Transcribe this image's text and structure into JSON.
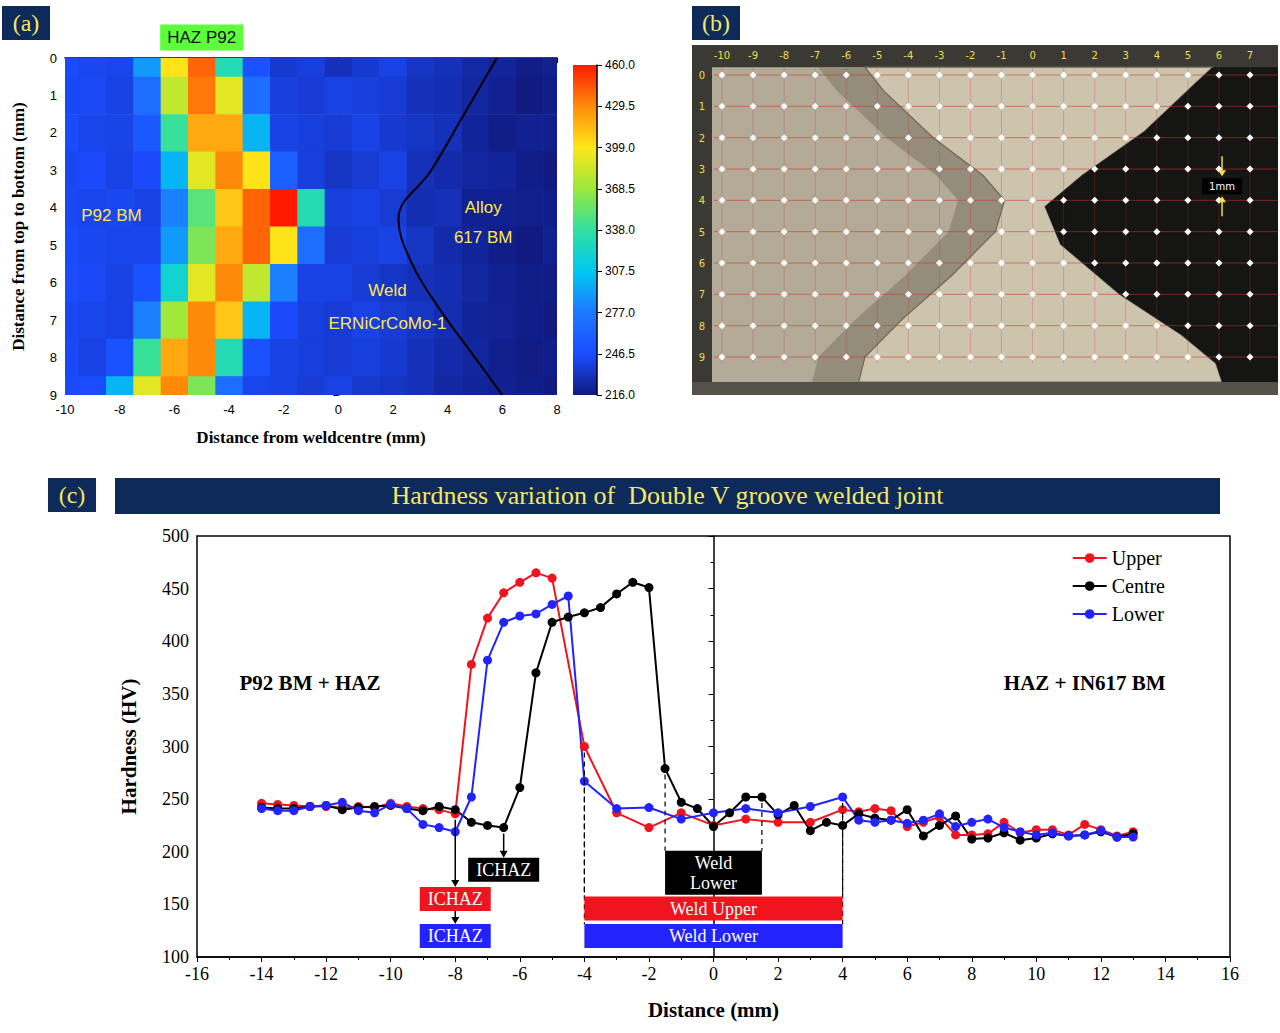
{
  "chart_data": [
    {
      "panel": "(a)",
      "type": "heatmap",
      "xlabel": "Distance from weldcentre (mm)",
      "ylabel": "Distance from top to bottom (mm)",
      "x": [
        -10,
        -9,
        -8,
        -7,
        -6,
        -5,
        -4,
        -3,
        -2,
        -1,
        0,
        1,
        2,
        3,
        4,
        5,
        6,
        7,
        8
      ],
      "y": [
        0,
        1,
        2,
        3,
        4,
        5,
        6,
        7,
        8,
        9
      ],
      "values": [
        [
          245,
          243,
          242,
          290,
          400,
          440,
          330,
          250,
          235,
          238,
          230,
          235,
          240,
          232,
          230,
          225,
          222,
          218,
          220
        ],
        [
          244,
          244,
          240,
          270,
          380,
          435,
          390,
          270,
          238,
          236,
          240,
          238,
          236,
          230,
          228,
          224,
          220,
          216,
          218
        ],
        [
          246,
          242,
          241,
          255,
          340,
          420,
          420,
          300,
          240,
          238,
          236,
          240,
          235,
          232,
          230,
          222,
          218,
          220,
          219
        ],
        [
          243,
          245,
          240,
          245,
          300,
          390,
          430,
          400,
          260,
          238,
          232,
          236,
          240,
          230,
          226,
          224,
          222,
          218,
          216
        ],
        [
          244,
          242,
          243,
          240,
          280,
          350,
          410,
          440,
          460,
          330,
          238,
          240,
          236,
          228,
          230,
          220,
          220,
          219,
          218
        ],
        [
          245,
          243,
          242,
          242,
          290,
          360,
          420,
          440,
          400,
          270,
          236,
          238,
          240,
          232,
          226,
          222,
          218,
          216,
          220
        ],
        [
          246,
          244,
          240,
          250,
          320,
          390,
          430,
          380,
          280,
          240,
          240,
          236,
          232,
          230,
          228,
          224,
          220,
          218,
          217
        ],
        [
          243,
          242,
          240,
          280,
          370,
          430,
          410,
          300,
          245,
          238,
          236,
          240,
          236,
          232,
          228,
          222,
          221,
          218,
          216
        ],
        [
          244,
          240,
          250,
          340,
          420,
          430,
          330,
          250,
          240,
          238,
          236,
          238,
          235,
          230,
          226,
          223,
          219,
          217,
          218
        ],
        [
          245,
          246,
          300,
          390,
          430,
          360,
          270,
          242,
          240,
          236,
          240,
          234,
          232,
          230,
          224,
          222,
          220,
          218,
          216
        ]
      ],
      "xlim": [
        -10,
        8
      ],
      "xticks": [
        -10,
        -8,
        -6,
        -4,
        -2,
        0,
        2,
        4,
        6,
        8
      ],
      "ylim": [
        0,
        9
      ],
      "yticks": [
        0,
        1,
        2,
        3,
        4,
        5,
        6,
        7,
        8,
        9
      ],
      "colorbar": {
        "range": [
          216,
          460
        ],
        "ticks": [
          {
            "value": 460,
            "label": "460.0"
          },
          {
            "value": 429.5,
            "label": "429.5"
          },
          {
            "value": 399,
            "label": "399.0"
          },
          {
            "value": 368.5,
            "label": "368.5"
          },
          {
            "value": 338,
            "label": "338.0"
          },
          {
            "value": 307.5,
            "label": "307.5"
          },
          {
            "value": 277,
            "label": "277.0"
          },
          {
            "value": 246.5,
            "label": "246.5"
          },
          {
            "value": 216,
            "label": "216.0"
          }
        ]
      },
      "fusion_line": {
        "x": [
          5.8,
          4.6,
          3.4,
          2.2,
          2.7,
          3.7,
          4.9,
          6
        ],
        "y": [
          0,
          1.5,
          3,
          4.3,
          5.5,
          6.7,
          7.9,
          9
        ]
      },
      "annotations": [
        {
          "text": "HAZ P92",
          "x": -5,
          "y": -0.55,
          "color": "#5dff3a"
        },
        {
          "text": "P92 BM",
          "x": -8.3,
          "y": 4.2
        },
        {
          "text": "Weld",
          "x": 1.8,
          "y": 6.2
        },
        {
          "text": "ERNiCrCoMo-1",
          "x": 1.8,
          "y": 7.1
        },
        {
          "text": "Alloy",
          "x": 5.3,
          "y": 4
        },
        {
          "text": "617 BM",
          "x": 5.3,
          "y": 4.8
        }
      ],
      "grid": false
    },
    {
      "panel": "(c)",
      "type": "line",
      "title": "Hardness variation of  Double V groove welded joint",
      "xlabel": "Distance (mm)",
      "ylabel": "Hardness (HV)",
      "xlim": [
        -16,
        16
      ],
      "xticks": [
        -16,
        -14,
        -12,
        -10,
        -8,
        -6,
        -4,
        -2,
        0,
        2,
        4,
        6,
        8,
        10,
        12,
        14,
        16
      ],
      "ylim": [
        100,
        500
      ],
      "yticks": [
        100,
        150,
        200,
        250,
        300,
        350,
        400,
        450,
        500
      ],
      "legend": "top-right",
      "grid": false,
      "marker": "circle",
      "series": [
        {
          "name": "Upper",
          "color": "#f0141e",
          "x": [
            -14,
            -13.5,
            -13,
            -12.5,
            -12,
            -11.5,
            -11,
            -10.5,
            -10,
            -9.5,
            -9,
            -8.5,
            -8,
            -7.5,
            -7,
            -6.5,
            -6,
            -5.5,
            -5,
            -4,
            -3,
            -2,
            -1,
            0,
            1,
            2,
            3,
            4,
            4.5,
            5,
            5.5,
            6,
            6.5,
            7,
            7.5,
            8,
            8.5,
            9,
            9.5,
            10,
            10.5,
            11,
            11.5,
            12,
            12.5,
            13
          ],
          "values": [
            246,
            245,
            244,
            243,
            243,
            242,
            243,
            242,
            246,
            243,
            241,
            240,
            236,
            378,
            422,
            446,
            456,
            465,
            460,
            300,
            237,
            223,
            237,
            225,
            231,
            228,
            228,
            240,
            238,
            241,
            239,
            224,
            228,
            233,
            216,
            216,
            217,
            228,
            218,
            221,
            221,
            216,
            226,
            221,
            215,
            219
          ]
        },
        {
          "name": "Centre",
          "color": "#000000",
          "x": [
            -14,
            -13.5,
            -13,
            -12.5,
            -12,
            -11.5,
            -11,
            -10.5,
            -10,
            -9.5,
            -9,
            -8.5,
            -8,
            -7.5,
            -7,
            -6.5,
            -6,
            -5.5,
            -5,
            -4.5,
            -4,
            -3.5,
            -3,
            -2.5,
            -2,
            -1.5,
            -1,
            -0.5,
            0,
            0.5,
            1,
            1.5,
            2,
            2.5,
            3,
            3.5,
            4,
            4.5,
            5,
            5.5,
            6,
            6.5,
            7,
            7.5,
            8,
            8.5,
            9,
            9.5,
            10,
            10.5,
            11,
            11.5,
            12,
            12.5,
            13
          ],
          "values": [
            242,
            241,
            241,
            243,
            244,
            240,
            242,
            243,
            244,
            241,
            239,
            243,
            240,
            228,
            225,
            223,
            261,
            370,
            418,
            423,
            427,
            432,
            445,
            456,
            451,
            279,
            247,
            241,
            224,
            237,
            252,
            252,
            235,
            244,
            220,
            228,
            225,
            236,
            232,
            230,
            240,
            215,
            225,
            234,
            212,
            213,
            218,
            211,
            213,
            217,
            215,
            216,
            219,
            214,
            217
          ]
        },
        {
          "name": "Lower",
          "color": "#2323ff",
          "x": [
            -14,
            -13.5,
            -13,
            -12.5,
            -12,
            -11.5,
            -11,
            -10.5,
            -10,
            -9.5,
            -9,
            -8.5,
            -8,
            -7.5,
            -7,
            -6.5,
            -6,
            -5.5,
            -5,
            -4.5,
            -4,
            -3,
            -2,
            -1,
            0,
            1,
            2,
            3,
            4,
            4.5,
            5,
            5.5,
            6,
            6.5,
            7,
            7.5,
            8,
            8.5,
            9,
            9.5,
            10,
            10.5,
            11,
            11.5,
            12,
            12.5,
            13
          ],
          "values": [
            241,
            239,
            239,
            243,
            244,
            247,
            239,
            237,
            245,
            241,
            226,
            223,
            219,
            252,
            382,
            418,
            424,
            426,
            435,
            443,
            267,
            241,
            242,
            231,
            237,
            241,
            237,
            243,
            252,
            230,
            228,
            230,
            227,
            230,
            236,
            224,
            228,
            231,
            223,
            219,
            216,
            218,
            215,
            216,
            220,
            214,
            214
          ]
        }
      ],
      "annotations": [
        {
          "text": "P92 BM + HAZ",
          "x": -12.5,
          "y": 360
        },
        {
          "text": "HAZ + IN617 BM",
          "x": 11.5,
          "y": 360
        },
        {
          "text": "ICHAZ",
          "x": -6.5,
          "y": 183,
          "color": "#000000"
        },
        {
          "text": "ICHAZ",
          "x": -8,
          "y": 155,
          "color": "#f0141e"
        },
        {
          "text": "ICHAZ",
          "x": -8,
          "y": 120,
          "color": "#2323ff"
        },
        {
          "text": "Weld Lower",
          "x": [
            -1.5,
            1.5
          ],
          "y": 180,
          "color": "#000000"
        },
        {
          "text": "Weld Upper",
          "x": [
            -4,
            4
          ],
          "y": 146,
          "color": "#f0141e"
        },
        {
          "text": "Weld Lower",
          "x": [
            -4,
            4
          ],
          "y": 120,
          "color": "#2323ff"
        }
      ]
    }
  ],
  "macrograph": {
    "panel": "(b)",
    "x_labels": [
      -10,
      -9,
      -8,
      -7,
      -6,
      -5,
      -4,
      -3,
      -2,
      -1,
      0,
      1,
      2,
      3,
      4,
      5,
      6,
      7
    ],
    "y_labels": [
      0,
      1,
      2,
      3,
      4,
      5,
      6,
      7,
      8,
      9
    ],
    "scale_label": "1mm"
  }
}
